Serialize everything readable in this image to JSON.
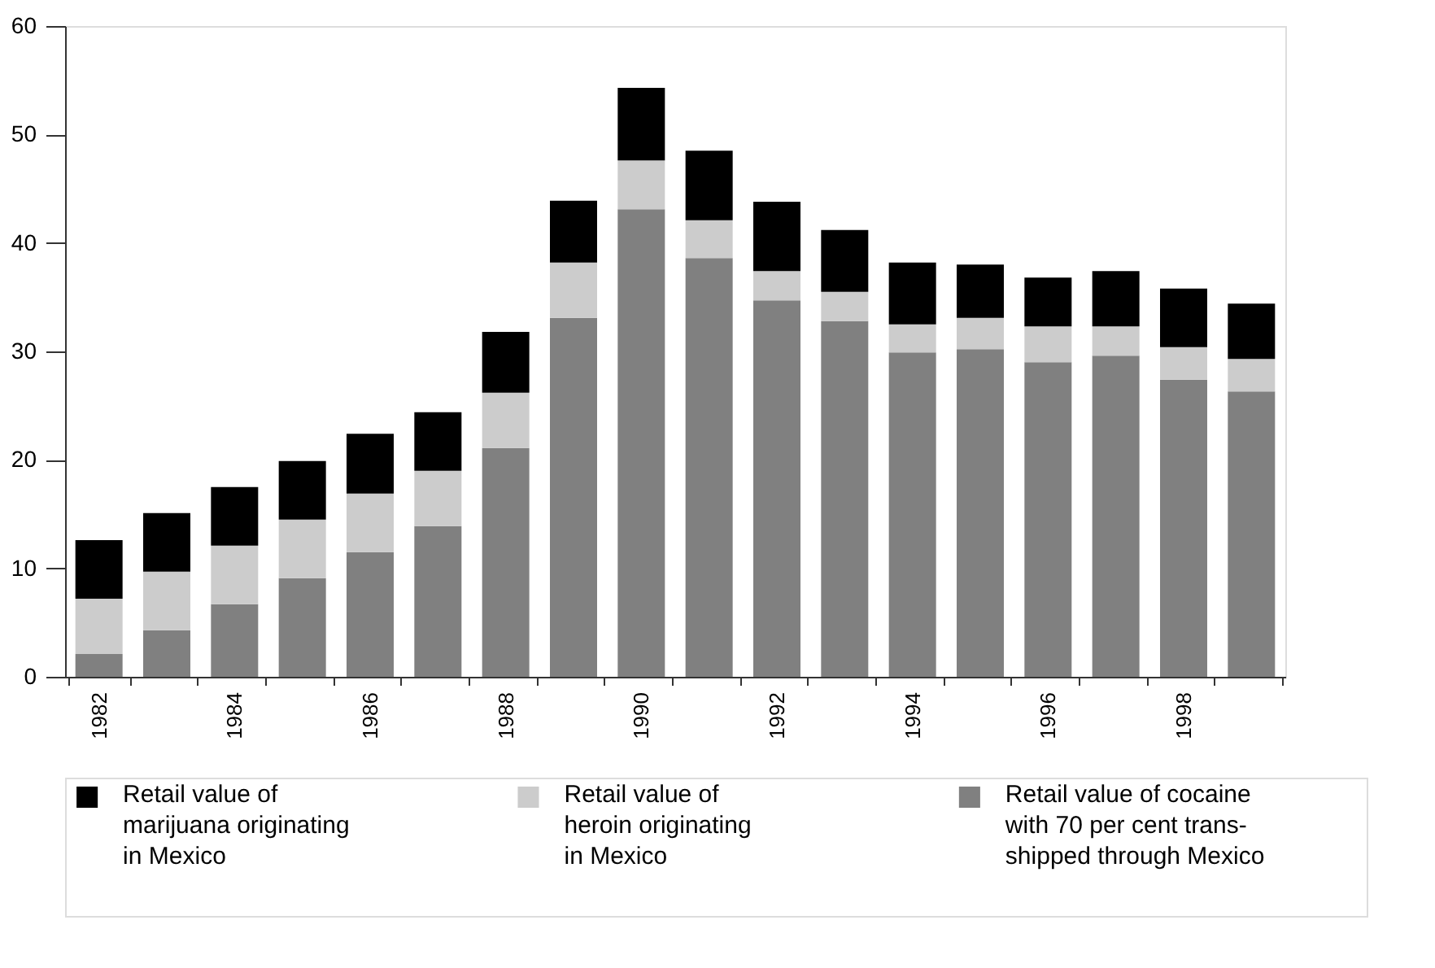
{
  "chart_data": {
    "type": "bar",
    "stacked": true,
    "categories": [
      "1982",
      null,
      "1984",
      null,
      "1986",
      null,
      "1988",
      null,
      "1990",
      null,
      "1992",
      null,
      "1994",
      null,
      "1996",
      null,
      "1998",
      null
    ],
    "series": [
      {
        "name": "Retail value of cocaine with 70 per cent trans-shipped through Mexico",
        "color": "#808080",
        "values": [
          2.1,
          4.3,
          6.7,
          9.1,
          11.5,
          13.9,
          21.1,
          33.1,
          43.1,
          38.6,
          34.7,
          32.8,
          29.9,
          30.2,
          29.0,
          29.6,
          27.4,
          26.3
        ]
      },
      {
        "name": "Retail value of heroin originating in Mexico",
        "color": "#cccccc",
        "values": [
          5.1,
          5.4,
          5.4,
          5.4,
          5.4,
          5.1,
          5.1,
          5.1,
          4.5,
          3.5,
          2.7,
          2.7,
          2.6,
          2.9,
          3.3,
          2.7,
          3.0,
          3.0
        ]
      },
      {
        "name": "Retail value of marijuana originating in Mexico",
        "color": "#000000",
        "values": [
          5.4,
          5.4,
          5.4,
          5.4,
          5.5,
          5.4,
          5.6,
          5.7,
          6.7,
          6.4,
          6.4,
          5.7,
          5.7,
          4.9,
          4.5,
          5.1,
          5.4,
          5.1
        ]
      }
    ],
    "ylim": [
      0,
      60
    ],
    "yticks": [
      0,
      10,
      20,
      30,
      40,
      50,
      60
    ],
    "grid": false,
    "legend": "bottom"
  }
}
